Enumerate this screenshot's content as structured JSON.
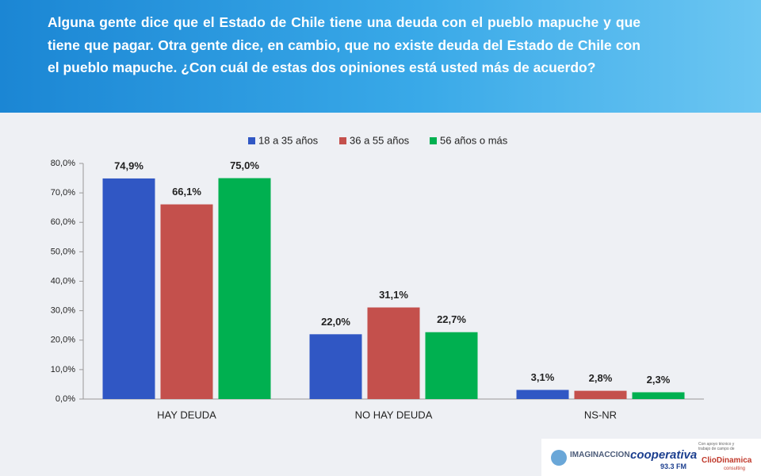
{
  "chart_data": {
    "type": "bar",
    "title": "Alguna gente dice que el Estado de Chile tiene una deuda con el pueblo mapuche y que tiene que pagar. Otra gente dice, en cambio, que no existe deuda del Estado de Chile con el pueblo mapuche. ¿Con cuál de estas dos opiniones está usted más de acuerdo?",
    "categories": [
      "HAY DEUDA",
      "NO HAY DEUDA",
      "NS-NR"
    ],
    "series": [
      {
        "name": "18 a 35 años",
        "color": "#3057c4",
        "values": [
          74.9,
          22.0,
          3.1
        ],
        "value_labels": [
          "74,9%",
          "22,0%",
          "3,1%"
        ]
      },
      {
        "name": "36 a 55 años",
        "color": "#c4504c",
        "values": [
          66.1,
          31.1,
          2.8
        ],
        "value_labels": [
          "66,1%",
          "31,1%",
          "2,8%"
        ]
      },
      {
        "name": "56 años o más",
        "color": "#00b050",
        "values": [
          75.0,
          22.7,
          2.3
        ],
        "value_labels": [
          "75,0%",
          "22,7%",
          "2,3%"
        ]
      }
    ],
    "ylim": [
      0,
      80
    ],
    "yticks": [
      {
        "value": 0,
        "label": "0,0%"
      },
      {
        "value": 10,
        "label": "10,0%"
      },
      {
        "value": 20,
        "label": "20,0%"
      },
      {
        "value": 30,
        "label": "30,0%"
      },
      {
        "value": 40,
        "label": "40,0%"
      },
      {
        "value": 50,
        "label": "50,0%"
      },
      {
        "value": 60,
        "label": "60,0%"
      },
      {
        "value": 70,
        "label": "70,0%"
      },
      {
        "value": 80,
        "label": "80,0%"
      }
    ],
    "legend": "top"
  },
  "logos": [
    "IMAGINACCION",
    "cooperativa",
    "93.3 FM",
    "Con apoyo técnico y trabajo de campo de",
    "ClioDinamica",
    "consulting"
  ]
}
